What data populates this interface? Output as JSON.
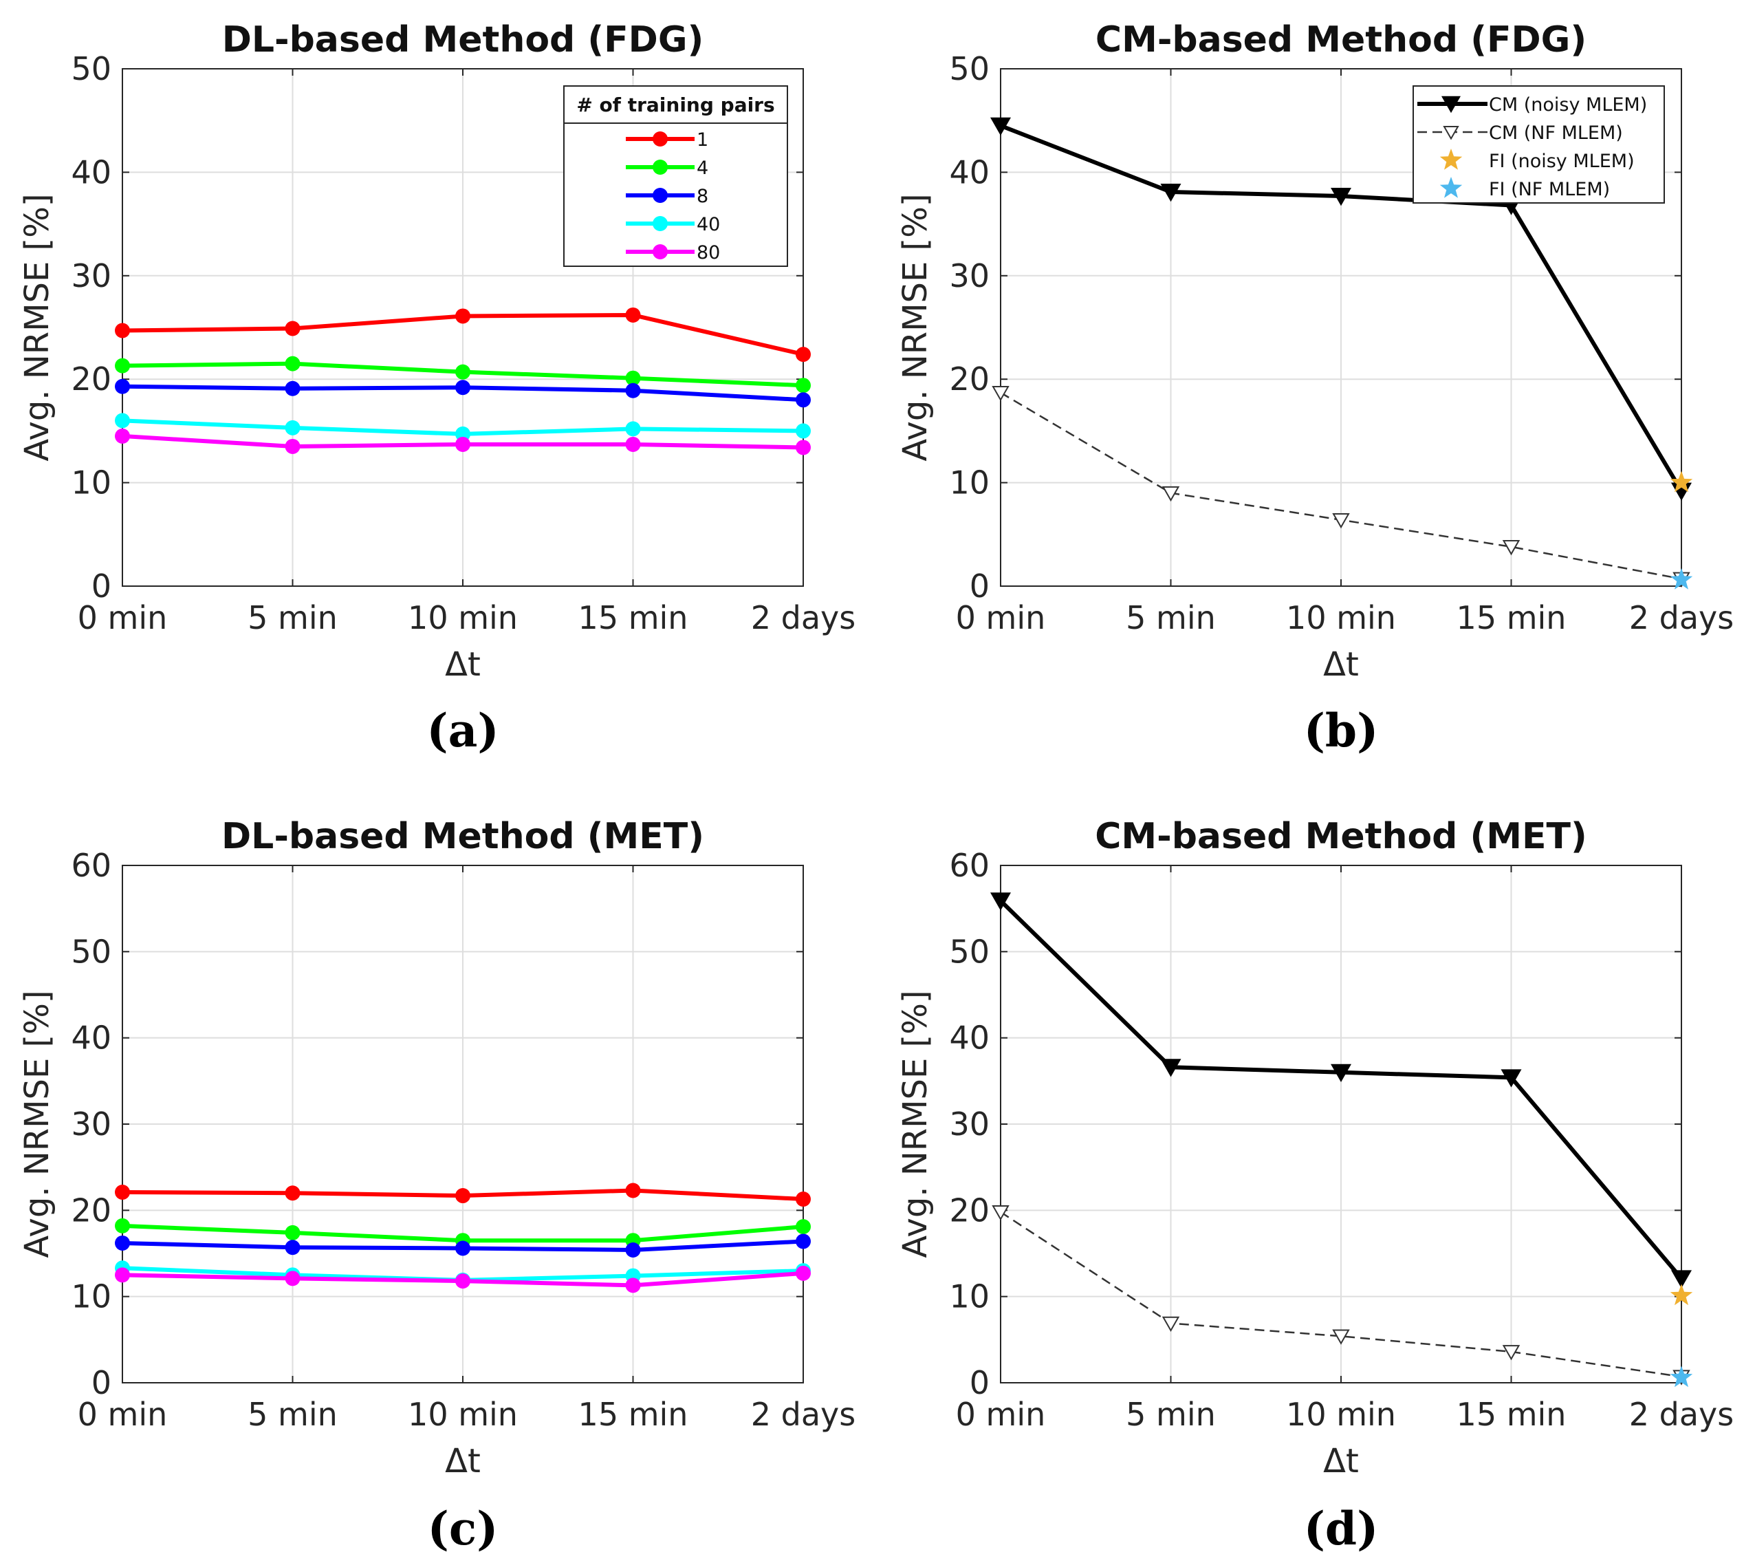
{
  "chart_data": [
    {
      "type": "line",
      "panel_label": "(a)",
      "title": "DL-based Method (FDG)",
      "xlabel": "Δt",
      "ylabel": "Avg. NRMSE [%]",
      "categories": [
        "0 min",
        "5 min",
        "10 min",
        "15 min",
        "2 days"
      ],
      "ylim": [
        0,
        50
      ],
      "yticks": [
        "0",
        "10",
        "20",
        "30",
        "40",
        "50"
      ],
      "grid": true,
      "legend_position": "top-right",
      "legend_title": "# of training pairs",
      "series": [
        {
          "name": "1",
          "color": "#ff0000",
          "values": [
            24.7,
            24.9,
            26.1,
            26.2,
            22.4
          ]
        },
        {
          "name": "4",
          "color": "#00ff00",
          "values": [
            21.3,
            21.5,
            20.7,
            20.1,
            19.4
          ]
        },
        {
          "name": "8",
          "color": "#0000ff",
          "values": [
            19.3,
            19.1,
            19.2,
            18.9,
            18.0
          ]
        },
        {
          "name": "40",
          "color": "#00ffff",
          "values": [
            16.0,
            15.3,
            14.7,
            15.2,
            15.0
          ]
        },
        {
          "name": "80",
          "color": "#ff00ff",
          "values": [
            14.5,
            13.5,
            13.7,
            13.7,
            13.4
          ]
        }
      ]
    },
    {
      "type": "line",
      "panel_label": "(b)",
      "title": "CM-based Method (FDG)",
      "xlabel": "Δt",
      "ylabel": "Avg. NRMSE [%]",
      "categories": [
        "0 min",
        "5 min",
        "10 min",
        "15 min",
        "2 days"
      ],
      "ylim": [
        0,
        50
      ],
      "yticks": [
        "0",
        "10",
        "20",
        "30",
        "40",
        "50"
      ],
      "grid": true,
      "legend_position": "top-right",
      "series": [
        {
          "name": "CM (noisy MLEM)",
          "color": "#000000",
          "style": "solid-filled-triangle",
          "values": [
            44.5,
            38.1,
            37.7,
            36.8,
            9.2
          ]
        },
        {
          "name": "CM (NF MLEM)",
          "color": "#333333",
          "style": "dashed-open-triangle",
          "values": [
            18.7,
            9.0,
            6.4,
            3.8,
            0.7
          ]
        },
        {
          "name": "FI (noisy MLEM)",
          "color": "#f0b030",
          "style": "star",
          "values": [
            null,
            null,
            null,
            null,
            10.0
          ]
        },
        {
          "name": "FI (NF MLEM)",
          "color": "#4db8ee",
          "style": "star",
          "values": [
            null,
            null,
            null,
            null,
            0.6
          ]
        }
      ]
    },
    {
      "type": "line",
      "panel_label": "(c)",
      "title": "DL-based Method (MET)",
      "xlabel": "Δt",
      "ylabel": "Avg. NRMSE [%]",
      "categories": [
        "0 min",
        "5 min",
        "10 min",
        "15 min",
        "2 days"
      ],
      "ylim": [
        0,
        60
      ],
      "yticks": [
        "0",
        "10",
        "20",
        "30",
        "40",
        "50",
        "60"
      ],
      "grid": true,
      "series": [
        {
          "name": "1",
          "color": "#ff0000",
          "values": [
            22.1,
            22.0,
            21.7,
            22.3,
            21.3
          ]
        },
        {
          "name": "4",
          "color": "#00ff00",
          "values": [
            18.2,
            17.4,
            16.5,
            16.5,
            18.1
          ]
        },
        {
          "name": "8",
          "color": "#0000ff",
          "values": [
            16.2,
            15.7,
            15.6,
            15.4,
            16.4
          ]
        },
        {
          "name": "40",
          "color": "#00ffff",
          "values": [
            13.3,
            12.5,
            11.9,
            12.4,
            13.0
          ]
        },
        {
          "name": "80",
          "color": "#ff00ff",
          "values": [
            12.5,
            12.1,
            11.8,
            11.3,
            12.7
          ]
        }
      ]
    },
    {
      "type": "line",
      "panel_label": "(d)",
      "title": "CM-based Method (MET)",
      "xlabel": "Δt",
      "ylabel": "Avg. NRMSE [%]",
      "categories": [
        "0 min",
        "5 min",
        "10 min",
        "15 min",
        "2 days"
      ],
      "ylim": [
        0,
        60
      ],
      "yticks": [
        "0",
        "10",
        "20",
        "30",
        "40",
        "50",
        "60"
      ],
      "grid": true,
      "series": [
        {
          "name": "CM (noisy MLEM)",
          "color": "#000000",
          "style": "solid-filled-triangle",
          "values": [
            55.9,
            36.6,
            36.0,
            35.4,
            12.1
          ]
        },
        {
          "name": "CM (NF MLEM)",
          "color": "#333333",
          "style": "dashed-open-triangle",
          "values": [
            19.8,
            6.9,
            5.4,
            3.6,
            0.7
          ]
        },
        {
          "name": "FI (noisy MLEM)",
          "color": "#f0b030",
          "style": "star",
          "values": [
            null,
            null,
            null,
            null,
            10.1
          ]
        },
        {
          "name": "FI (NF MLEM)",
          "color": "#4db8ee",
          "style": "star",
          "values": [
            null,
            null,
            null,
            null,
            0.6
          ]
        }
      ]
    }
  ]
}
